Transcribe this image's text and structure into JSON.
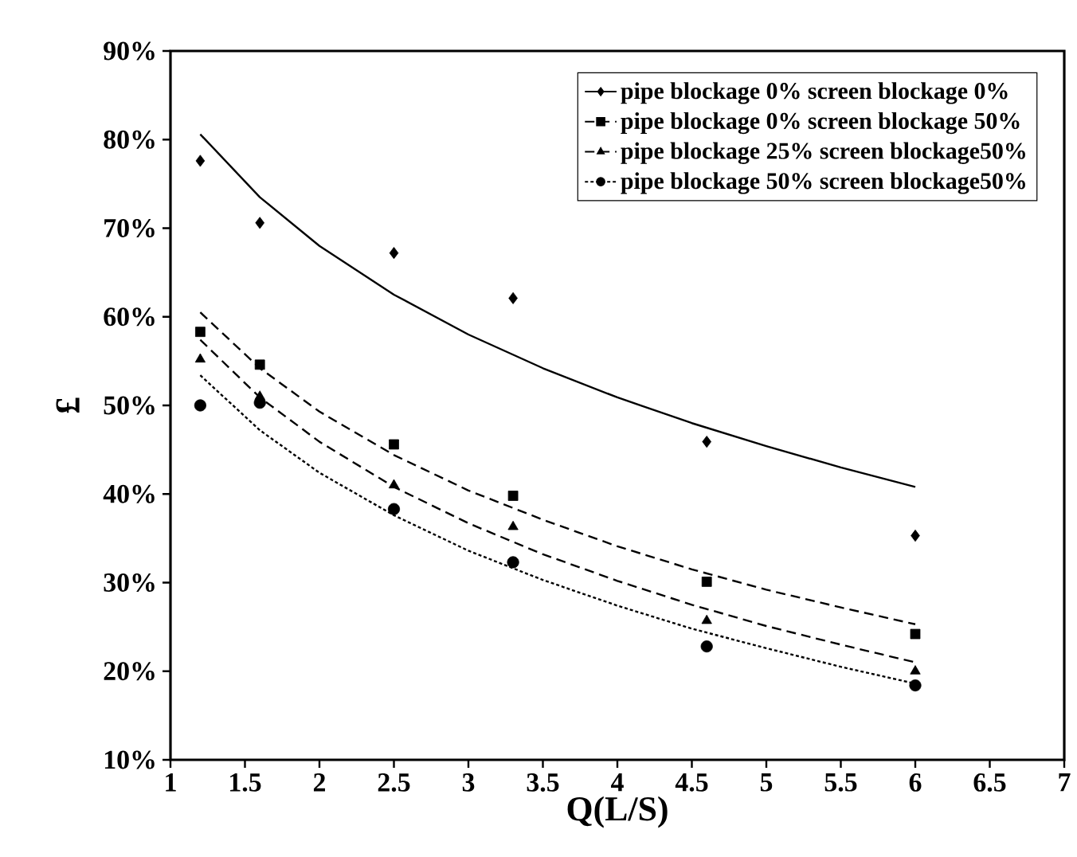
{
  "chart_data": {
    "type": "scatter",
    "xlabel": "Q(L/S)",
    "ylabel": "£",
    "xlim": [
      1,
      7
    ],
    "ylim": [
      10,
      90
    ],
    "xticks": [
      1,
      1.5,
      2,
      2.5,
      3,
      3.5,
      4,
      4.5,
      5,
      5.5,
      6,
      6.5,
      7
    ],
    "yticks": [
      {
        "value": 10,
        "label": "10%"
      },
      {
        "value": 20,
        "label": "20%"
      },
      {
        "value": 30,
        "label": "30%"
      },
      {
        "value": 40,
        "label": "40%"
      },
      {
        "value": 50,
        "label": "50%"
      },
      {
        "value": 60,
        "label": "60%"
      },
      {
        "value": 70,
        "label": "70%"
      },
      {
        "value": 80,
        "label": "80%"
      },
      {
        "value": 90,
        "label": "90%"
      }
    ],
    "grid": false,
    "legend": "top right",
    "series": [
      {
        "name": "pipe blockage 0% screen blockage 0%",
        "marker": "diamond",
        "color": "#000000",
        "x": [
          1.2,
          1.6,
          2.5,
          3.3,
          4.6,
          6
        ],
        "values": [
          77.6,
          70.6,
          67.2,
          62.1,
          45.9,
          35.3
        ]
      },
      {
        "type": "line",
        "line_style": "solid",
        "marker": "none",
        "color": "#000000",
        "x": [
          1.2,
          1.6,
          2,
          2.5,
          3,
          3.5,
          4,
          4.5,
          5,
          5.5,
          6
        ],
        "values": [
          80.6,
          73.5,
          68,
          62.5,
          58,
          54.2,
          50.9,
          48,
          45.4,
          43,
          40.8
        ]
      },
      {
        "name": "pipe blockage 0% screen blockage 50%",
        "marker": "square",
        "color": "#000000",
        "x": [
          1.2,
          1.6,
          2.5,
          3.3,
          4.6,
          6
        ],
        "values": [
          58.3,
          54.6,
          45.6,
          39.8,
          30.1,
          24.2
        ]
      },
      {
        "type": "line",
        "line_style": "dashed",
        "marker": "none",
        "color": "#000000",
        "x": [
          1.2,
          1.6,
          2,
          2.5,
          3,
          3.5,
          4,
          4.5,
          5,
          5.5,
          6
        ],
        "values": [
          60.5,
          54.2,
          49.3,
          44.4,
          40.4,
          37.1,
          34.1,
          31.5,
          29.2,
          27.2,
          25.3
        ]
      },
      {
        "name": "pipe blockage 25% screen blockage50%",
        "marker": "triangle",
        "color": "#000000",
        "x": [
          1.2,
          1.6,
          2.5,
          3.3,
          4.6,
          6
        ],
        "values": [
          55.2,
          51.0,
          41.0,
          36.3,
          25.7,
          20.0
        ]
      },
      {
        "type": "line",
        "line_style": "dashed",
        "marker": "none",
        "color": "#000000",
        "x": [
          1.2,
          1.6,
          2,
          2.5,
          3,
          3.5,
          4,
          4.5,
          5,
          5.5,
          6
        ],
        "values": [
          57.4,
          50.9,
          45.9,
          40.8,
          36.7,
          33.2,
          30.2,
          27.5,
          25.1,
          23.0,
          21.0
        ]
      },
      {
        "name": "pipe blockage 50% screen blockage50%",
        "marker": "circle",
        "color": "#000000",
        "x": [
          1.2,
          1.6,
          2.5,
          3.3,
          4.6,
          6
        ],
        "values": [
          50.0,
          50.3,
          38.3,
          32.3,
          22.8,
          18.4
        ]
      },
      {
        "type": "line",
        "line_style": "dotted",
        "marker": "none",
        "color": "#000000",
        "x": [
          1.2,
          1.6,
          2,
          2.5,
          3,
          3.5,
          4,
          4.5,
          5,
          5.5,
          6
        ],
        "values": [
          53.4,
          47.2,
          42.4,
          37.6,
          33.6,
          30.3,
          27.4,
          24.8,
          22.6,
          20.5,
          18.6
        ]
      }
    ]
  }
}
